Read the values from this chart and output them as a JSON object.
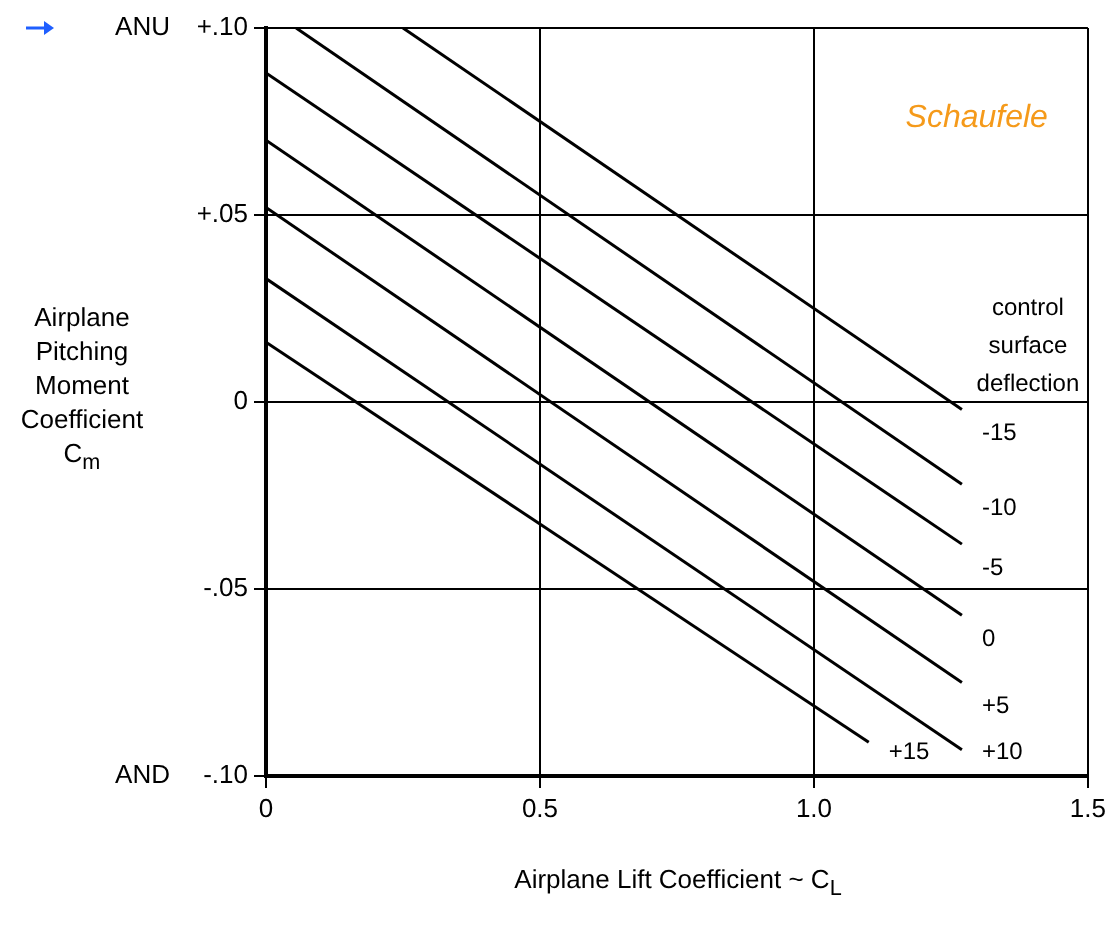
{
  "chart_data": {
    "type": "line",
    "xlabel": "Airplane Lift Coefficient ~ C$_{L}$",
    "ylabel": "Airplane Pitching Moment Coefficient C$_{m}$",
    "legend_title": "control surface deflection",
    "annotations": [
      "ANU",
      "AND",
      "Schaufele"
    ],
    "xlim": [
      0,
      1.5
    ],
    "xticks": [
      0,
      0.5,
      {
        "value": 1,
        "label": "1.0"
      },
      1.5
    ],
    "ylim": [
      -0.1,
      0.1
    ],
    "yticks": [
      {
        "value": -0.1,
        "label": "-.10"
      },
      {
        "value": -0.05,
        "label": "-.05"
      },
      0,
      {
        "value": 0.05,
        "label": "+.05"
      },
      {
        "value": 0.1,
        "label": "+.10"
      }
    ],
    "grid": true,
    "legend": false,
    "marker": "none",
    "line_style": "solid",
    "series": [
      {
        "name": "-15",
        "color": "#000000",
        "x": [
          0.25,
          1.27
        ],
        "values": [
          0.1,
          -0.002
        ]
      },
      {
        "name": "-10",
        "color": "#000000",
        "x": [
          0.055,
          1.27
        ],
        "values": [
          0.1,
          -0.022
        ]
      },
      {
        "name": "-5",
        "color": "#000000",
        "x": [
          0,
          1.27
        ],
        "values": [
          0.088,
          -0.038
        ]
      },
      {
        "name": "0",
        "color": "#000000",
        "x": [
          0,
          1.27
        ],
        "values": [
          0.07,
          -0.057
        ]
      },
      {
        "name": "+5",
        "color": "#000000",
        "x": [
          0,
          1.27
        ],
        "values": [
          0.052,
          -0.075
        ]
      },
      {
        "name": "+10",
        "color": "#000000",
        "x": [
          0,
          1.27
        ],
        "values": [
          0.033,
          -0.093
        ]
      },
      {
        "name": "+15",
        "color": "#000000",
        "x": [
          0,
          1.1
        ],
        "values": [
          0.016,
          -0.091
        ]
      }
    ]
  }
}
